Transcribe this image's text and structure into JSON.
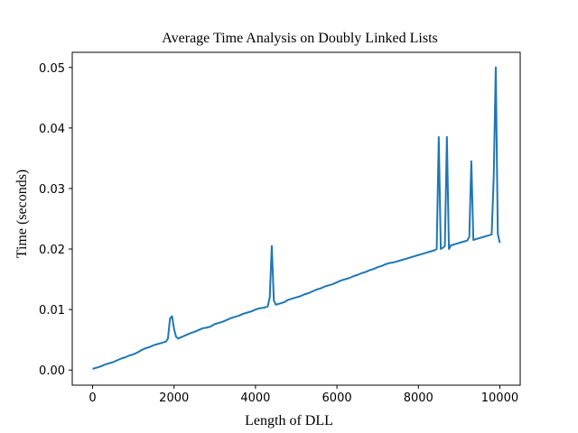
{
  "chart_data": {
    "type": "line",
    "title": "Average Time Analysis on Doubly Linked Lists",
    "xlabel": "Length of DLL",
    "ylabel": "Time (seconds)",
    "xlim": [
      -500,
      10500
    ],
    "ylim": [
      -0.0025,
      0.0525
    ],
    "xticks": [
      0,
      2000,
      4000,
      6000,
      8000,
      10000
    ],
    "xtick_labels": [
      "0",
      "2000",
      "4000",
      "6000",
      "8000",
      "10000"
    ],
    "yticks": [
      0.0,
      0.01,
      0.02,
      0.03,
      0.04,
      0.05
    ],
    "ytick_labels": [
      "0.00",
      "0.01",
      "0.02",
      "0.03",
      "0.04",
      "0.05"
    ],
    "grid": false,
    "legend": "none",
    "series": [
      {
        "color": "#1f77b4",
        "x": [
          0,
          100,
          200,
          300,
          400,
          500,
          600,
          700,
          800,
          900,
          1000,
          1100,
          1200,
          1300,
          1400,
          1500,
          1600,
          1700,
          1800,
          1850,
          1900,
          1950,
          2000,
          2050,
          2100,
          2200,
          2300,
          2400,
          2500,
          2600,
          2700,
          2800,
          2900,
          3000,
          3100,
          3200,
          3300,
          3400,
          3500,
          3600,
          3700,
          3800,
          3900,
          4000,
          4100,
          4200,
          4300,
          4350,
          4400,
          4450,
          4500,
          4600,
          4700,
          4800,
          4900,
          5000,
          5100,
          5200,
          5300,
          5400,
          5500,
          5600,
          5700,
          5800,
          5900,
          6000,
          6100,
          6200,
          6300,
          6400,
          6500,
          6600,
          6700,
          6800,
          6900,
          7000,
          7100,
          7200,
          7300,
          7400,
          7500,
          7600,
          7700,
          7800,
          7900,
          8000,
          8100,
          8200,
          8300,
          8400,
          8450,
          8500,
          8550,
          8600,
          8650,
          8700,
          8750,
          8800,
          8900,
          9000,
          9100,
          9200,
          9250,
          9300,
          9350,
          9400,
          9500,
          9600,
          9700,
          9800,
          9850,
          9900,
          9950,
          10000
        ],
        "y": [
          0.0002,
          0.0004,
          0.0006,
          0.0009,
          0.0011,
          0.0013,
          0.0016,
          0.0019,
          0.0021,
          0.0024,
          0.0026,
          0.0029,
          0.0033,
          0.0036,
          0.0038,
          0.0041,
          0.0043,
          0.0045,
          0.0047,
          0.0052,
          0.0085,
          0.0089,
          0.0068,
          0.0055,
          0.0052,
          0.0055,
          0.0058,
          0.0061,
          0.0063,
          0.0066,
          0.0069,
          0.007,
          0.0072,
          0.0076,
          0.0078,
          0.008,
          0.0083,
          0.0086,
          0.0088,
          0.009,
          0.0093,
          0.0095,
          0.0097,
          0.01,
          0.0102,
          0.0103,
          0.0105,
          0.012,
          0.0205,
          0.0115,
          0.0108,
          0.011,
          0.0112,
          0.0116,
          0.0118,
          0.012,
          0.0122,
          0.0125,
          0.0127,
          0.013,
          0.0133,
          0.0135,
          0.0138,
          0.014,
          0.0142,
          0.0145,
          0.0148,
          0.015,
          0.0152,
          0.0155,
          0.0157,
          0.016,
          0.0162,
          0.0165,
          0.0167,
          0.017,
          0.0172,
          0.0175,
          0.0177,
          0.0178,
          0.018,
          0.0182,
          0.0184,
          0.0186,
          0.0188,
          0.019,
          0.0192,
          0.0194,
          0.0196,
          0.0198,
          0.02,
          0.0385,
          0.02,
          0.0202,
          0.0205,
          0.0385,
          0.02,
          0.0206,
          0.0208,
          0.021,
          0.0212,
          0.0214,
          0.022,
          0.0345,
          0.0215,
          0.0216,
          0.0218,
          0.022,
          0.0222,
          0.0224,
          0.032,
          0.05,
          0.0225,
          0.021
        ]
      }
    ]
  }
}
